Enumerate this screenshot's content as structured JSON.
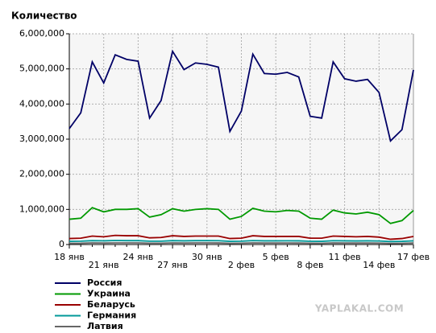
{
  "chart_data": {
    "type": "line",
    "title": "Количество",
    "categories": [
      "18 янв",
      null,
      null,
      "21 янв",
      null,
      null,
      "24 янв",
      null,
      null,
      "27 янв",
      null,
      null,
      "30 янв",
      null,
      null,
      "2 фев",
      null,
      null,
      "5 фев",
      null,
      null,
      "8 фев",
      null,
      null,
      "11 фев",
      null,
      null,
      "14 фев",
      null,
      null,
      "17 фев"
    ],
    "series": [
      {
        "name": "Россия",
        "color": "#000066",
        "values": [
          3300000,
          3750000,
          5200000,
          4600000,
          5400000,
          5270000,
          5220000,
          3600000,
          4100000,
          5500000,
          4980000,
          5170000,
          5130000,
          5050000,
          3220000,
          3800000,
          5420000,
          4870000,
          4850000,
          4900000,
          4770000,
          3650000,
          3600000,
          5200000,
          4720000,
          4650000,
          4700000,
          4330000,
          2950000,
          3270000,
          4970000
        ]
      },
      {
        "name": "Украина",
        "color": "#009900",
        "values": [
          720000,
          750000,
          1050000,
          930000,
          1000000,
          1000000,
          1020000,
          780000,
          850000,
          1020000,
          950000,
          1000000,
          1020000,
          1000000,
          720000,
          800000,
          1030000,
          950000,
          930000,
          970000,
          950000,
          750000,
          720000,
          980000,
          900000,
          870000,
          920000,
          850000,
          600000,
          680000,
          970000
        ]
      },
      {
        "name": "Беларусь",
        "color": "#990000",
        "values": [
          170000,
          180000,
          240000,
          220000,
          260000,
          250000,
          250000,
          190000,
          200000,
          250000,
          230000,
          240000,
          240000,
          240000,
          170000,
          180000,
          250000,
          230000,
          230000,
          230000,
          230000,
          180000,
          180000,
          240000,
          230000,
          220000,
          230000,
          210000,
          150000,
          170000,
          230000
        ]
      },
      {
        "name": "Германия",
        "color": "#009999",
        "values": [
          90000,
          95000,
          110000,
          105000,
          115000,
          110000,
          110000,
          95000,
          95000,
          110000,
          105000,
          110000,
          110000,
          108000,
          90000,
          95000,
          112000,
          105000,
          105000,
          106000,
          104000,
          92000,
          90000,
          108000,
          104000,
          102000,
          104000,
          100000,
          85000,
          90000,
          105000
        ]
      },
      {
        "name": "Латвия",
        "color": "#666666",
        "values": [
          35000,
          36000,
          45000,
          42000,
          46000,
          45000,
          45000,
          37000,
          38000,
          46000,
          43000,
          45000,
          45000,
          44000,
          35000,
          37000,
          46000,
          43000,
          43000,
          43000,
          42000,
          36000,
          35000,
          44000,
          42000,
          41000,
          42000,
          40000,
          32000,
          34000,
          42000
        ]
      }
    ],
    "ylim": [
      0,
      6000000
    ],
    "yticks": [
      {
        "value": 0,
        "label": "0"
      },
      {
        "value": 1000000,
        "label": "1,000,000"
      },
      {
        "value": 2000000,
        "label": "2,000,000"
      },
      {
        "value": 3000000,
        "label": "3,000,000"
      },
      {
        "value": 4000000,
        "label": "4,000,000"
      },
      {
        "value": 5000000,
        "label": "5,000,000"
      },
      {
        "value": 6000000,
        "label": "6,000,000"
      }
    ],
    "grid": true,
    "legend": "bottom-left",
    "watermark": "YAPLAKAL.COM"
  }
}
